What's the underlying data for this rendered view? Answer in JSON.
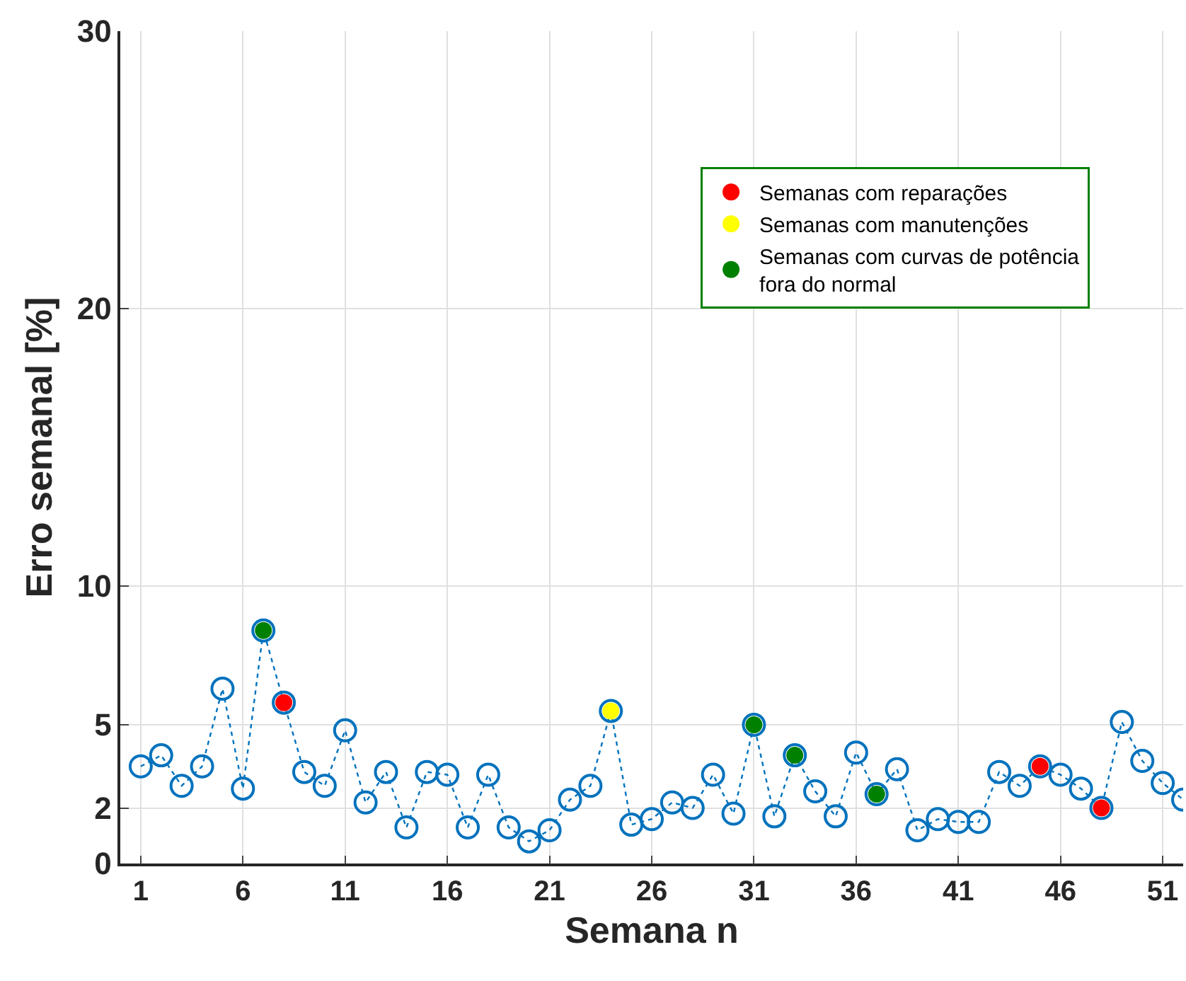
{
  "chart_data": {
    "type": "line",
    "xlabel": "Semana n",
    "ylabel": "Erro semanal [%]",
    "x": [
      1,
      2,
      3,
      4,
      5,
      6,
      7,
      8,
      9,
      10,
      11,
      12,
      13,
      14,
      15,
      16,
      17,
      18,
      19,
      20,
      21,
      22,
      23,
      24,
      25,
      26,
      27,
      28,
      29,
      30,
      31,
      32,
      33,
      34,
      35,
      36,
      37,
      38,
      39,
      40,
      41,
      42,
      43,
      44,
      45,
      46,
      47,
      48,
      49,
      50,
      51,
      52
    ],
    "series": [
      {
        "color": "#0072bd",
        "line_style": "dotted",
        "values": [
          3.5,
          3.9,
          2.8,
          3.5,
          6.3,
          2.7,
          8.4,
          5.8,
          3.3,
          2.8,
          4.8,
          2.2,
          3.3,
          1.3,
          3.3,
          3.2,
          1.3,
          3.2,
          1.3,
          0.8,
          1.2,
          2.3,
          2.8,
          5.5,
          1.4,
          1.6,
          2.2,
          2.0,
          3.2,
          1.8,
          5.0,
          1.7,
          3.9,
          2.6,
          1.7,
          4.0,
          2.5,
          3.4,
          1.2,
          1.6,
          1.5,
          1.5,
          3.3,
          2.8,
          3.5,
          3.2,
          2.7,
          2.0,
          5.1,
          3.7,
          2.9,
          2.3
        ]
      },
      {
        "type": "scatter",
        "name": "Semanas com reparações",
        "color": "#ff0000",
        "x": [
          8,
          45,
          48
        ],
        "values": [
          5.8,
          3.5,
          2.0
        ]
      },
      {
        "type": "scatter",
        "name": "Semanas com manutenções",
        "color": "#ffff00",
        "x": [
          24
        ],
        "values": [
          5.5
        ]
      },
      {
        "type": "scatter",
        "name": "Semanas com curvas de potência\nfora do normal",
        "color": "#008000",
        "x": [
          7,
          31,
          33,
          37
        ],
        "values": [
          8.4,
          5.0,
          3.9,
          2.5
        ]
      }
    ],
    "xlim": [
      0,
      52
    ],
    "xticks": [
      1,
      6,
      11,
      16,
      21,
      26,
      31,
      36,
      41,
      46,
      51
    ],
    "ylim": [
      0,
      30
    ],
    "yticks": [
      0,
      2,
      5,
      10,
      20,
      30
    ],
    "grid": true,
    "legend": "top right",
    "marker": "circle"
  }
}
